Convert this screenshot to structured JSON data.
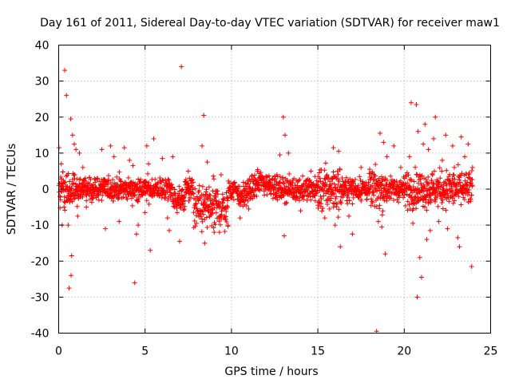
{
  "chart_data": {
    "type": "scatter",
    "title": "Day 161 of 2011, Sidereal Day-to-day VTEC variation (SDTVAR) for receiver maw1",
    "xlabel": "GPS time / hours",
    "ylabel": "SDTVAR / TECUs",
    "xlim": [
      0,
      25
    ],
    "ylim": [
      -40,
      40
    ],
    "xticks": [
      0,
      5,
      10,
      15,
      20,
      25
    ],
    "yticks": [
      -40,
      -30,
      -20,
      -10,
      0,
      10,
      20,
      30,
      40
    ],
    "grid": true,
    "marker": "+",
    "color": "#ff0000",
    "series": [
      {
        "name": "SDTVAR",
        "outliers": [
          [
            0.02,
            11.5
          ],
          [
            0.15,
            7.0
          ],
          [
            0.2,
            -10.0
          ],
          [
            0.35,
            33.0
          ],
          [
            0.45,
            26.0
          ],
          [
            0.55,
            -10.0
          ],
          [
            0.6,
            -27.5
          ],
          [
            0.7,
            19.5
          ],
          [
            0.72,
            -24.0
          ],
          [
            0.75,
            -18.5
          ],
          [
            0.8,
            15.0
          ],
          [
            0.9,
            12.5
          ],
          [
            1.0,
            11.0
          ],
          [
            1.1,
            -7.5
          ],
          [
            1.2,
            10.0
          ],
          [
            1.4,
            6.0
          ],
          [
            1.6,
            -5.0
          ],
          [
            2.5,
            11.0
          ],
          [
            2.7,
            -11.0
          ],
          [
            3.0,
            12.0
          ],
          [
            3.2,
            9.0
          ],
          [
            3.5,
            -9.0
          ],
          [
            3.8,
            11.5
          ],
          [
            4.1,
            8.0
          ],
          [
            4.3,
            6.5
          ],
          [
            4.4,
            -26.0
          ],
          [
            4.5,
            -12.5
          ],
          [
            4.6,
            -10.0
          ],
          [
            5.0,
            -6.5
          ],
          [
            5.1,
            12.0
          ],
          [
            5.2,
            7.0
          ],
          [
            5.3,
            -17.0
          ],
          [
            5.5,
            14.0
          ],
          [
            6.0,
            8.5
          ],
          [
            6.3,
            -8.0
          ],
          [
            6.4,
            -11.5
          ],
          [
            6.6,
            9.0
          ],
          [
            7.0,
            -14.5
          ],
          [
            7.1,
            34.0
          ],
          [
            7.5,
            5.0
          ],
          [
            8.3,
            12.0
          ],
          [
            8.4,
            20.5
          ],
          [
            8.45,
            -15.0
          ],
          [
            8.6,
            7.5
          ],
          [
            9.0,
            -12.0
          ],
          [
            9.4,
            4.0
          ],
          [
            9.8,
            -10.0
          ],
          [
            10.5,
            -8.0
          ],
          [
            11.0,
            -5.5
          ],
          [
            11.5,
            5.0
          ],
          [
            12.5,
            3.5
          ],
          [
            12.8,
            9.5
          ],
          [
            13.0,
            20.0
          ],
          [
            13.05,
            -13.0
          ],
          [
            13.1,
            15.0
          ],
          [
            13.3,
            10.0
          ],
          [
            14.0,
            -6.0
          ],
          [
            14.6,
            5.0
          ],
          [
            15.0,
            -4.5
          ],
          [
            15.4,
            -8.0
          ],
          [
            15.9,
            11.5
          ],
          [
            16.0,
            -10.0
          ],
          [
            16.2,
            10.5
          ],
          [
            16.3,
            -16.0
          ],
          [
            16.8,
            -7.5
          ],
          [
            17.0,
            -12.5
          ],
          [
            17.5,
            6.0
          ],
          [
            18.0,
            5.5
          ],
          [
            18.4,
            -39.5
          ],
          [
            18.5,
            -9.0
          ],
          [
            18.6,
            15.5
          ],
          [
            18.7,
            -10.5
          ],
          [
            18.8,
            13.0
          ],
          [
            18.9,
            -18.0
          ],
          [
            19.0,
            9.0
          ],
          [
            19.4,
            12.0
          ],
          [
            19.8,
            6.0
          ],
          [
            20.3,
            9.0
          ],
          [
            20.4,
            24.0
          ],
          [
            20.5,
            -9.5
          ],
          [
            20.7,
            23.5
          ],
          [
            20.75,
            -30.0
          ],
          [
            20.8,
            16.0
          ],
          [
            20.9,
            -19.0
          ],
          [
            21.0,
            -24.5
          ],
          [
            21.1,
            12.5
          ],
          [
            21.2,
            18.0
          ],
          [
            21.3,
            -14.0
          ],
          [
            21.4,
            11.0
          ],
          [
            21.5,
            -11.5
          ],
          [
            21.7,
            14.0
          ],
          [
            21.8,
            20.0
          ],
          [
            22.0,
            -9.0
          ],
          [
            22.2,
            8.0
          ],
          [
            22.4,
            15.0
          ],
          [
            22.5,
            -11.0
          ],
          [
            22.8,
            12.0
          ],
          [
            22.9,
            6.0
          ],
          [
            23.1,
            -13.5
          ],
          [
            23.2,
            -16.0
          ],
          [
            23.3,
            14.5
          ],
          [
            23.5,
            9.0
          ],
          [
            23.7,
            12.5
          ],
          [
            23.9,
            -21.5
          ],
          [
            23.95,
            6.0
          ]
        ]
      }
    ]
  }
}
